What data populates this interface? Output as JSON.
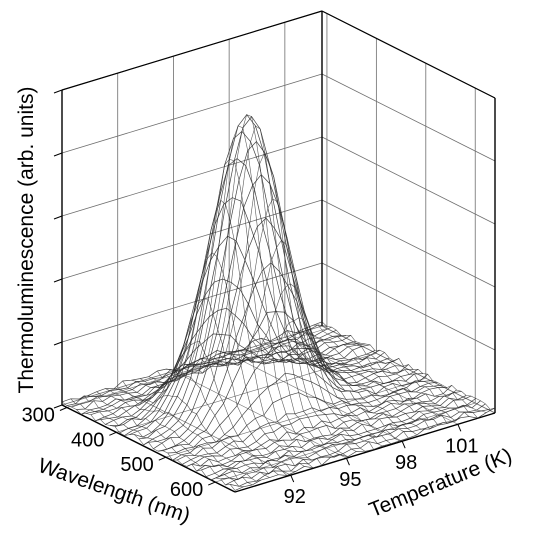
{
  "chart_data": {
    "type": "surface3d",
    "zlabel": "Thermoluminescence (arb. units)",
    "xlabel": "Wavelength (nm)",
    "ylabel": "Temperature (K)",
    "x_ticks": [
      "300",
      "400",
      "500",
      "600"
    ],
    "y_ticks": [
      "92",
      "95",
      "98",
      "101"
    ],
    "x_range": [
      290,
      640
    ],
    "y_range": [
      89,
      103
    ],
    "z_range": [
      0,
      1.0
    ],
    "z_tick_labels_shown": false,
    "grid": true,
    "surface": {
      "description_values": {
        "peak_wavelength_nm": 440,
        "peak_temperature_K": 95,
        "peak_height": 0.92,
        "baseline_noise": 0.02
      }
    },
    "colors": {
      "line": "#000000",
      "grid": "#6e6e6e",
      "background": "#ffffff"
    }
  }
}
